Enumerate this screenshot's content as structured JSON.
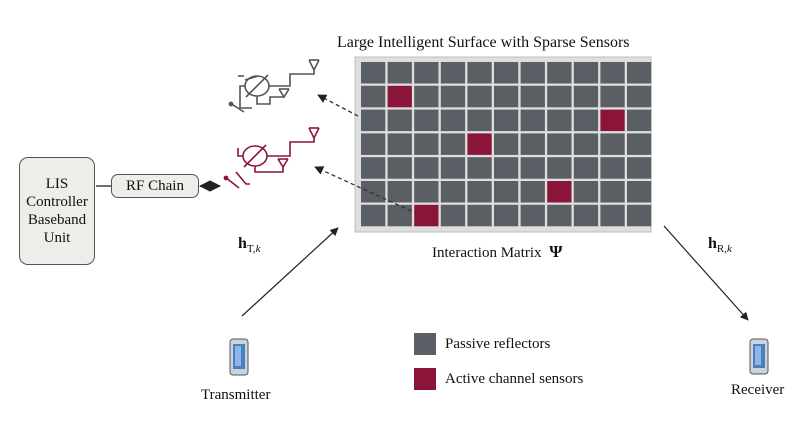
{
  "title": "Large Intelligent Surface with Sparse Sensors",
  "interaction_matrix_label": "Interaction Matrix",
  "interaction_matrix_symbol": "Ψ",
  "controller": {
    "lines": [
      "LIS",
      "Controller",
      "Baseband",
      "Unit"
    ]
  },
  "rf_chain_label": "RF Chain",
  "channel_tx": {
    "symbol": "h",
    "subscript": "T,",
    "subscript_k": "k"
  },
  "channel_rx": {
    "symbol": "h",
    "subscript": "R,",
    "subscript_k": "k"
  },
  "transmitter_label": "Transmitter",
  "receiver_label": "Receiver",
  "legend": [
    {
      "label": "Passive reflectors",
      "color": "#5a5f66"
    },
    {
      "label": "Active channel sensors",
      "color": "#8b1538"
    }
  ],
  "grid": {
    "rows": 7,
    "cols": 11,
    "active_cells": [
      [
        1,
        1
      ],
      [
        2,
        9
      ],
      [
        3,
        4
      ],
      [
        5,
        7
      ],
      [
        6,
        2
      ]
    ]
  },
  "colors": {
    "passive": "#5a5f66",
    "active": "#8b1538",
    "surface_bg": "#dedede",
    "rf_active": "#8b1538",
    "rf_passive": "#555555"
  },
  "icons": [
    "antenna-icon",
    "phase-shifter-icon",
    "switch-icon",
    "phone-icon"
  ]
}
